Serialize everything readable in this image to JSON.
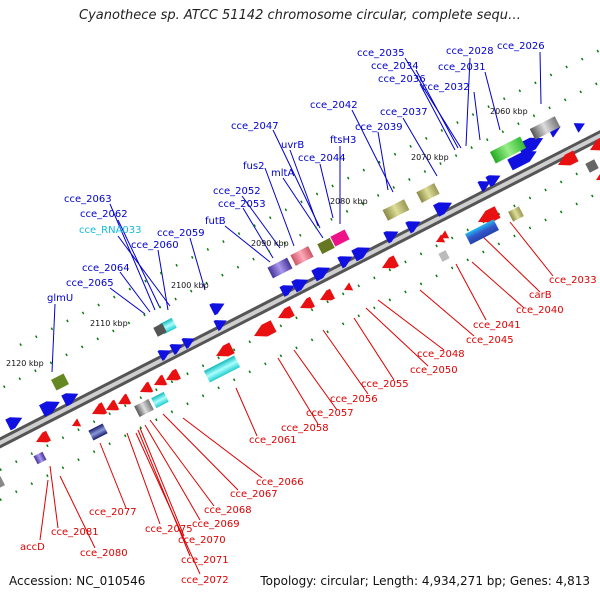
{
  "title": "Cyanothece sp. ATCC 51142 chromosome circular, complete sequ…",
  "footer": {
    "accession": "Accession: NC_010546",
    "summary": "Topology: circular; Length: 4,934,271 bp; Genes: 4,813"
  },
  "colors": {
    "forward_gene": "#1010e0",
    "reverse_gene": "#e81010",
    "forward_label": "#0000cc",
    "reverse_label": "#dd0000",
    "rna_label": "#11bbdd",
    "backbone": "#888888",
    "tick": "#0a7a0a"
  },
  "kbp_ticks": [
    "2060 kbp",
    "2070 kbp",
    "2080 kbp",
    "2090 kbp",
    "2100 kbp",
    "2110 kbp",
    "2120 kbp"
  ],
  "forward_labels": [
    {
      "text": "cce_2035"
    },
    {
      "text": "cce_2028"
    },
    {
      "text": "cce_2026"
    },
    {
      "text": "cce_2034"
    },
    {
      "text": "cce_2031"
    },
    {
      "text": "cce_2036"
    },
    {
      "text": "cce_2032"
    },
    {
      "text": "cce_2042"
    },
    {
      "text": "cce_2037"
    },
    {
      "text": "cce_2039"
    },
    {
      "text": "cce_2047"
    },
    {
      "text": "ftsH3"
    },
    {
      "text": "uvrB"
    },
    {
      "text": "cce_2044"
    },
    {
      "text": "fus2"
    },
    {
      "text": "mltA"
    },
    {
      "text": "cce_2052"
    },
    {
      "text": "cce_2053"
    },
    {
      "text": "futB"
    },
    {
      "text": "cce_2063"
    },
    {
      "text": "cce_2062"
    },
    {
      "text": "cce_RNA033"
    },
    {
      "text": "cce_2059"
    },
    {
      "text": "cce_2060"
    },
    {
      "text": "cce_2064"
    },
    {
      "text": "cce_2065"
    },
    {
      "text": "glmU"
    }
  ],
  "reverse_labels": [
    {
      "text": "cce_2033"
    },
    {
      "text": "carB"
    },
    {
      "text": "cce_2040"
    },
    {
      "text": "cce_2041"
    },
    {
      "text": "cce_2045"
    },
    {
      "text": "cce_2048"
    },
    {
      "text": "cce_2050"
    },
    {
      "text": "cce_2055"
    },
    {
      "text": "cce_2056"
    },
    {
      "text": "cce_2057"
    },
    {
      "text": "cce_2058"
    },
    {
      "text": "cce_2061"
    },
    {
      "text": "cce_2066"
    },
    {
      "text": "cce_2067"
    },
    {
      "text": "cce_2068"
    },
    {
      "text": "cce_2069"
    },
    {
      "text": "cce_2070"
    },
    {
      "text": "cce_2071"
    },
    {
      "text": "cce_2072"
    },
    {
      "text": "cce_2077"
    },
    {
      "text": "cce_2075"
    },
    {
      "text": "cce_2081"
    },
    {
      "text": "cce_2080"
    },
    {
      "text": "accD"
    }
  ]
}
